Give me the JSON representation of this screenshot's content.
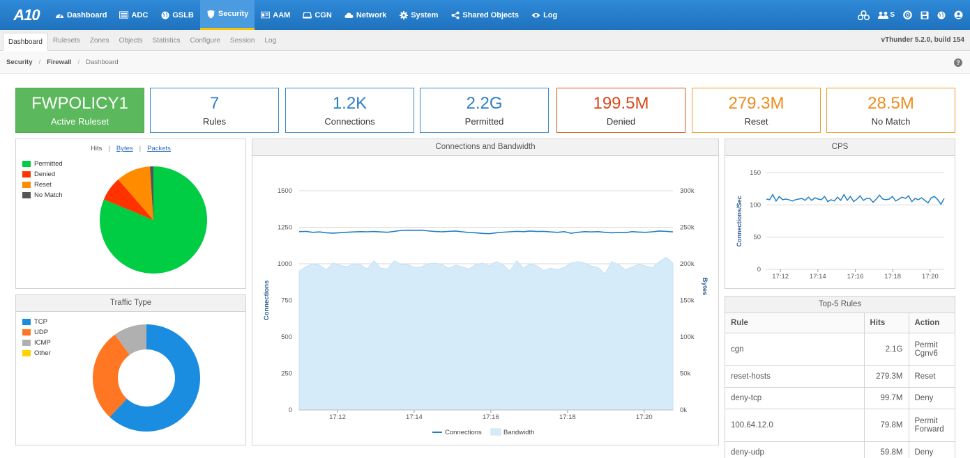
{
  "nav": {
    "logo": "A10",
    "items": [
      {
        "label": "Dashboard",
        "icon": "dashboard-icon"
      },
      {
        "label": "ADC",
        "icon": "adc-icon"
      },
      {
        "label": "GSLB",
        "icon": "globe-icon"
      },
      {
        "label": "Security",
        "icon": "shield-icon"
      },
      {
        "label": "AAM",
        "icon": "id-card-icon"
      },
      {
        "label": "CGN",
        "icon": "router-icon"
      },
      {
        "label": "Network",
        "icon": "cloud-icon"
      },
      {
        "label": "System",
        "icon": "gear-icon"
      },
      {
        "label": "Shared Objects",
        "icon": "share-icon"
      },
      {
        "label": "Log",
        "icon": "eye-icon"
      }
    ],
    "active": "Security",
    "right_partition_label": "S"
  },
  "subtabs": {
    "items": [
      "Dashboard",
      "Rulesets",
      "Zones",
      "Objects",
      "Statistics",
      "Configure",
      "Session",
      "Log"
    ],
    "active": "Dashboard",
    "version": "vThunder 5.2.0, build 154"
  },
  "breadcrumb": {
    "level1": "Security",
    "level2": "Firewall",
    "current": "Dashboard",
    "separator": "/"
  },
  "cards": {
    "ruleset": {
      "value": "FWPOLICY1",
      "label": "Active Ruleset"
    },
    "rules": {
      "value": "7",
      "label": "Rules"
    },
    "connections": {
      "value": "1.2K",
      "label": "Connections"
    },
    "permitted": {
      "value": "2.2G",
      "label": "Permitted"
    },
    "denied": {
      "value": "199.5M",
      "label": "Denied"
    },
    "reset": {
      "value": "279.3M",
      "label": "Reset"
    },
    "nomatch": {
      "value": "28.5M",
      "label": "No Match"
    }
  },
  "hits_panel": {
    "tabs": [
      "Hits",
      "Bytes",
      "Packets"
    ],
    "legend": [
      "Permitted",
      "Denied",
      "Reset",
      "No Match"
    ]
  },
  "traffic_panel": {
    "title": "Traffic Type",
    "legend": [
      "TCP",
      "UDP",
      "ICMP",
      "Other"
    ]
  },
  "conn_panel": {
    "title": "Connections and Bandwidth"
  },
  "cps_panel": {
    "title": "CPS"
  },
  "top_rules": {
    "title": "Top-5 Rules",
    "headers": [
      "Rule",
      "Hits",
      "Action"
    ],
    "rows": [
      {
        "rule": "cgn",
        "hits": "2.1G",
        "action1": "Permit",
        "action2": "Cgnv6"
      },
      {
        "rule": "reset-hosts",
        "hits": "279.3M",
        "action1": "Reset",
        "action2": ""
      },
      {
        "rule": "deny-tcp",
        "hits": "99.7M",
        "action1": "Deny",
        "action2": ""
      },
      {
        "rule": "100.64.12.0",
        "hits": "79.8M",
        "action1": "Permit",
        "action2": "Forward"
      },
      {
        "rule": "deny-udp",
        "hits": "59.8M",
        "action1": "Deny",
        "action2": ""
      }
    ]
  },
  "colors": {
    "permitted": "#00cc44",
    "denied": "#ff3300",
    "reset": "#ff8c00",
    "nomatch": "#555555",
    "tcp": "#1a8de0",
    "udp": "#ff7722",
    "icmp": "#b0b0b0",
    "other": "#ffd200",
    "connections": "#1f7fc4",
    "bandwidth": "#d6ebf9"
  },
  "chart_data": [
    {
      "type": "pie",
      "categories": [
        "Permitted",
        "Denied",
        "Reset",
        "No Match"
      ],
      "values": [
        2.2,
        0.1995,
        0.2793,
        0.0285
      ],
      "legend": "top-left"
    },
    {
      "type": "pie",
      "title": "Traffic Type",
      "categories": [
        "TCP",
        "UDP",
        "ICMP",
        "Other"
      ],
      "values": [
        62,
        28,
        10,
        0
      ],
      "donut": true,
      "legend": "top-left"
    },
    {
      "type": "line",
      "title": "Connections and Bandwidth",
      "xlabel": "",
      "ylabel": "Connections",
      "y2label": "Bytes",
      "ylim": [
        0,
        1500
      ],
      "y2lim": [
        0,
        300000
      ],
      "yticks": [
        "0",
        "250",
        "500",
        "750",
        "1000",
        "1250",
        "1500"
      ],
      "y2ticks": [
        "0k",
        "50k",
        "100k",
        "150k",
        "200k",
        "250k",
        "300k"
      ],
      "xticks": [
        "17:12",
        "17:14",
        "17:16",
        "17:18",
        "17:20"
      ],
      "xrange": [
        "17:11:00",
        "17:20:45"
      ],
      "series": [
        {
          "name": "Connections",
          "axis": "left",
          "values": [
            1220,
            1222,
            1215,
            1218,
            1212,
            1210,
            1213,
            1216,
            1218,
            1220,
            1219,
            1221,
            1218,
            1216,
            1222,
            1228,
            1230,
            1229,
            1230,
            1225,
            1221,
            1219,
            1222,
            1224,
            1219,
            1214,
            1212,
            1208,
            1206,
            1212,
            1216,
            1219,
            1222,
            1220,
            1224,
            1221,
            1222,
            1218,
            1215,
            1220,
            1209,
            1215,
            1220,
            1218,
            1220,
            1215,
            1212,
            1214,
            1213,
            1220,
            1217,
            1215,
            1219,
            1224,
            1222,
            1218
          ]
        },
        {
          "name": "Bandwidth",
          "axis": "right",
          "kind": "area",
          "values": [
            190000,
            196000,
            200000,
            198000,
            192000,
            201000,
            198000,
            196000,
            200000,
            199000,
            193000,
            204000,
            194000,
            193000,
            204000,
            199000,
            199000,
            195000,
            196000,
            200000,
            201000,
            199000,
            194000,
            198000,
            196000,
            193000,
            199000,
            201000,
            197000,
            203000,
            199000,
            190000,
            204000,
            194000,
            200000,
            197000,
            191000,
            194000,
            192000,
            195000,
            201000,
            203000,
            201000,
            197000,
            195000,
            186000,
            203000,
            199000,
            192000,
            196000,
            199000,
            197000,
            195000,
            203000,
            209000,
            201000
          ]
        }
      ],
      "legend": "bottom"
    },
    {
      "type": "line",
      "title": "CPS",
      "ylabel": "Connections/Sec",
      "ylim": [
        0,
        150
      ],
      "yticks": [
        "0",
        "50",
        "100",
        "150"
      ],
      "xticks": [
        "17:12",
        "17:14",
        "17:16",
        "17:18",
        "17:20"
      ],
      "xrange": [
        "17:11:15",
        "17:20:45"
      ],
      "series": [
        {
          "name": "CPS",
          "values": [
            109,
            108,
            116,
            106,
            113,
            108,
            109,
            108,
            106,
            108,
            109,
            110,
            107,
            112,
            107,
            111,
            109,
            108,
            113,
            105,
            108,
            106,
            112,
            107,
            116,
            107,
            113,
            105,
            109,
            114,
            107,
            110,
            110,
            104,
            109,
            115,
            109,
            108,
            109,
            113,
            106,
            109,
            112,
            110,
            114,
            105,
            110,
            108,
            111,
            107,
            103,
            111,
            113,
            108,
            101,
            110
          ]
        }
      ]
    }
  ]
}
